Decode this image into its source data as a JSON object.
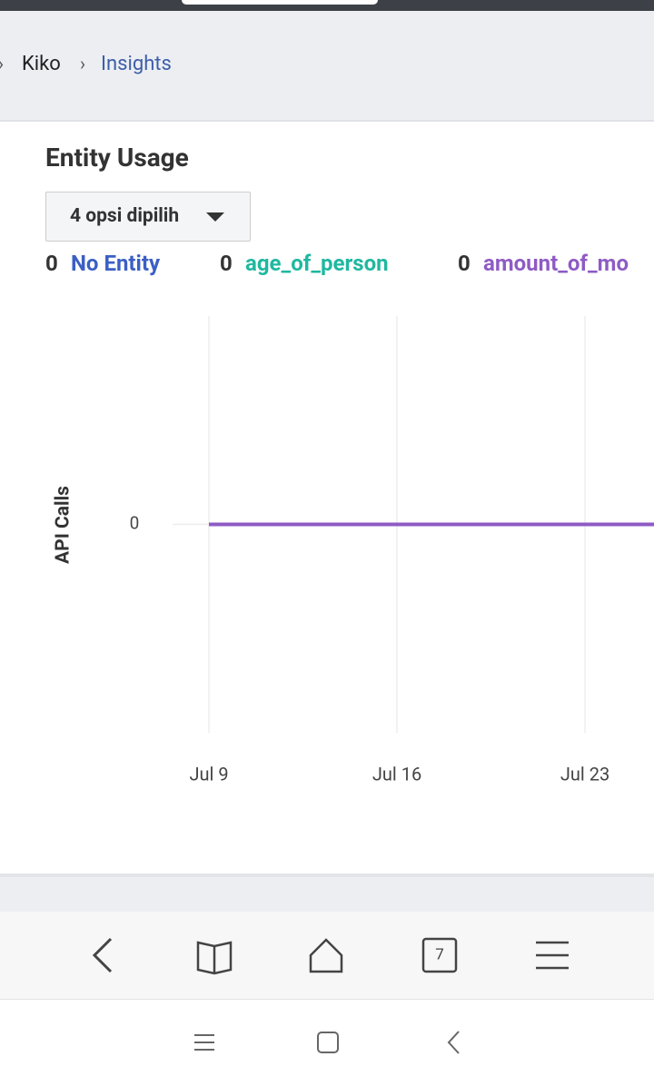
{
  "breadcrumb": [
    "Kiko",
    "Insights"
  ],
  "card": {
    "title": "Entity Usage",
    "dropdown": "4 opsi dipilih"
  },
  "chart_data": {
    "type": "line",
    "ylabel": "API Calls",
    "categories": [
      "Jul 9",
      "Jul 16",
      "Jul 23",
      null
    ],
    "series": [
      {
        "name": "No Entity",
        "total": 0,
        "color": "#3b5fc4",
        "values": [
          0,
          0,
          0,
          0
        ]
      },
      {
        "name": "age_of_person",
        "total": 0,
        "color": "#1fb8a0",
        "values": [
          0,
          0,
          0,
          0
        ]
      },
      {
        "name": "amount_of_mo",
        "total": 0,
        "color": "#8e5bc4",
        "values": [
          0,
          0,
          0,
          0
        ]
      }
    ],
    "ylim": [
      -1,
      1
    ],
    "yticks": [
      0
    ],
    "grid": true
  },
  "browser": {
    "tab_count": "7"
  }
}
